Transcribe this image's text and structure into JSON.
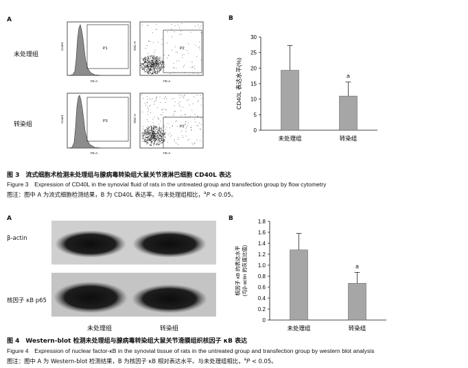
{
  "figure3": {
    "panelA": "A",
    "panelB": "B",
    "row_labels": [
      "未处理组",
      "转染组"
    ],
    "histograms": [
      {
        "gate": "P1",
        "xaxis": "FE-A",
        "yaxis": "Count"
      },
      {
        "gate": "P3",
        "xaxis": "FE-A",
        "yaxis": "Count"
      }
    ],
    "scatters": [
      {
        "gate": "P2",
        "xaxis": "FE-A",
        "yaxis": "SSC-A"
      },
      {
        "gate": "P2",
        "xaxis": "FE-A",
        "yaxis": "SSC-A"
      }
    ],
    "caption_cn": "图 3　流式细胞术检测未处理组与腺病毒转染组大鼠关节液淋巴细胞 CD40L 表达",
    "caption_en": "Figure 3　Expression of CD40L in the synovial fluid of rats in the untreated group and transfection group by flow cytometry",
    "note_prefix": "图注：图中 A 为流式细胞检测结果，B 为 CD40L 表达率。与未处理组相比，",
    "note_sup": "a",
    "note_p": "P",
    "note_suffix": " < 0.05。"
  },
  "figure4": {
    "panelA": "A",
    "panelB": "B",
    "blot_labels": [
      "β-actin",
      "核因子 κB p65"
    ],
    "lane_labels": [
      "未处理组",
      "转染组"
    ],
    "caption_cn": "图 4　Western-blot 检测未处理组与腺病毒转染组大鼠关节滑膜组织核因子 κB 表达",
    "caption_en": "Figure 4　Expression of nuclear factor-κB in the synovial tissue of rats in the untreated group and transfection group by western blot analysis",
    "note_prefix": "图注：图中 A 为 Western-blot 检测结果，B 为核因子 κB 相对表达水平。与未处理组相比，",
    "note_sup": "a",
    "note_p": "P",
    "note_suffix": " < 0.05。"
  },
  "chart_data": [
    {
      "type": "bar",
      "categories": [
        "未处理组",
        "转染组"
      ],
      "values": [
        19.3,
        11.0
      ],
      "errors": [
        8.0,
        4.5
      ],
      "significance": [
        "",
        "a"
      ],
      "ylabel": "CD40L 表达水平(%)",
      "ylim": [
        0,
        30
      ],
      "yticks": [
        0,
        5,
        10,
        15,
        20,
        25,
        30
      ],
      "bar_color": "#a6a6a6"
    },
    {
      "type": "bar",
      "categories": [
        "未处理组",
        "转染组"
      ],
      "values": [
        1.28,
        0.67
      ],
      "errors": [
        0.3,
        0.2
      ],
      "significance": [
        "",
        "a"
      ],
      "ylabel_line1": "核因子 κB 的表达水平",
      "ylabel_line2": "(与β-actin 的灰度比值)",
      "ylim": [
        0,
        1.8
      ],
      "yticks": [
        0,
        0.2,
        0.4,
        0.6,
        0.8,
        1.0,
        1.2,
        1.4,
        1.6,
        1.8
      ],
      "bar_color": "#a6a6a6"
    }
  ]
}
